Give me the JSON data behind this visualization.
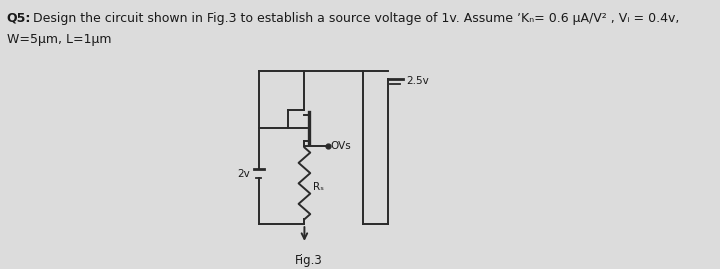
{
  "title_bold": "Q5:",
  "title_text": " Design the circuit shown in Fig.3 to establish a source voltage of 1v. Assume ʼKₙ= 0.6 μA/V² , Vᵢ = 0.4v,",
  "title_line2": "W=5μm, L=1μm",
  "fig_label": "Fig.3",
  "vdd_label": "2.5v",
  "vg_label": "2v",
  "vs_label": "OVs",
  "rs_label": "Rₛ",
  "bg_color": "#dcdcdc",
  "circuit_color": "#2a2a2a",
  "text_color": "#1a1a1a"
}
